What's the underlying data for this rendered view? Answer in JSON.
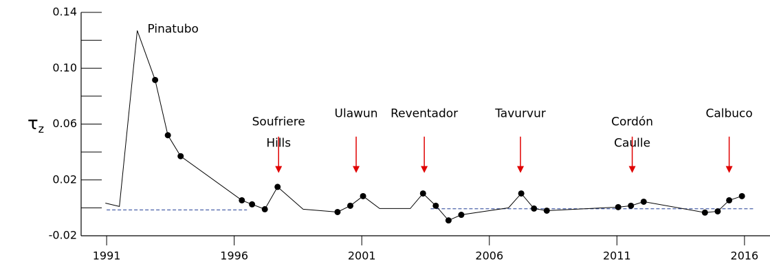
{
  "chart_data": {
    "type": "line",
    "ylabel": {
      "symbol": "τ",
      "subscript": "z"
    },
    "xlim": [
      1990,
      2017
    ],
    "xticks": [
      1991,
      1996,
      2001,
      2006,
      2011,
      2016
    ],
    "ylim": [
      -0.02,
      0.14
    ],
    "yticks": [
      -0.02,
      0.02,
      0.06,
      {
        "value": 0.1,
        "label": "0.10"
      },
      0.14
    ],
    "yminor_ticks": [
      0,
      0.04,
      0.08,
      0.12
    ],
    "series": [
      {
        "color": "#000000",
        "x": [
          1990.95,
          1991.5,
          1992.2,
          1992.9,
          1993.4,
          1993.9,
          1996.3,
          1996.7,
          1997.2,
          1997.7,
          1998.7,
          2000.05,
          2000.55,
          2001.05,
          2001.7,
          2002.9,
          2003.4,
          2003.9,
          2004.4,
          2004.9,
          2006.75,
          2007.25,
          2007.75,
          2008.25,
          2011.05,
          2011.55,
          2012.05,
          2014.45,
          2014.95,
          2015.4,
          2015.9
        ],
        "values": [
          0.0034,
          0.001,
          0.127,
          0.0916,
          0.052,
          0.037,
          0.0054,
          0.0025,
          -0.001,
          0.015,
          -0.001,
          -0.003,
          0.0015,
          0.0084,
          -0.0005,
          -0.0005,
          0.0103,
          0.0015,
          -0.009,
          -0.005,
          0,
          0.0103,
          -0.0005,
          -0.002,
          0.0005,
          0.0015,
          0.0044,
          -0.0034,
          -0.0025,
          0.0054,
          0.0084
        ],
        "markers": [
          false,
          false,
          false,
          true,
          true,
          true,
          true,
          true,
          true,
          true,
          false,
          true,
          true,
          true,
          false,
          false,
          true,
          true,
          true,
          true,
          false,
          true,
          true,
          true,
          true,
          true,
          true,
          true,
          true,
          true,
          true
        ]
      }
    ],
    "reference_lines": [
      {
        "color": "#1f3a93",
        "x": [
          1991,
          1996.5
        ],
        "y": -0.0015
      },
      {
        "color": "#1f3a93",
        "x": [
          2003.7,
          2016.4
        ],
        "y": -0.0007
      }
    ],
    "annotations": [
      {
        "lines": [
          "Pinatubo"
        ],
        "x": 1992.6,
        "y": 0.128
      },
      {
        "lines": [
          "Soufriere",
          "Hills"
        ],
        "x": 1997.74,
        "y": 0.0615,
        "arrow_color": "#e00000",
        "arrow_y": [
          0.051,
          0.025
        ]
      },
      {
        "lines": [
          "Ulawun"
        ],
        "x": 2000.78,
        "y": 0.0675,
        "arrow_color": "#e00000",
        "arrow_y": [
          0.051,
          0.025
        ]
      },
      {
        "lines": [
          "Reventador"
        ],
        "x": 2003.45,
        "y": 0.0675,
        "arrow_color": "#e00000",
        "arrow_y": [
          0.051,
          0.025
        ]
      },
      {
        "lines": [
          "Tavurvur"
        ],
        "x": 2007.22,
        "y": 0.0675,
        "arrow_color": "#e00000",
        "arrow_y": [
          0.051,
          0.025
        ]
      },
      {
        "lines": [
          "Cordón",
          "Caulle"
        ],
        "x": 2011.6,
        "y": 0.0615,
        "arrow_color": "#e00000",
        "arrow_y": [
          0.051,
          0.025
        ]
      },
      {
        "lines": [
          "Calbuco"
        ],
        "x": 2015.4,
        "y": 0.0675,
        "arrow_color": "#e00000",
        "arrow_y": [
          0.051,
          0.025
        ]
      }
    ]
  }
}
